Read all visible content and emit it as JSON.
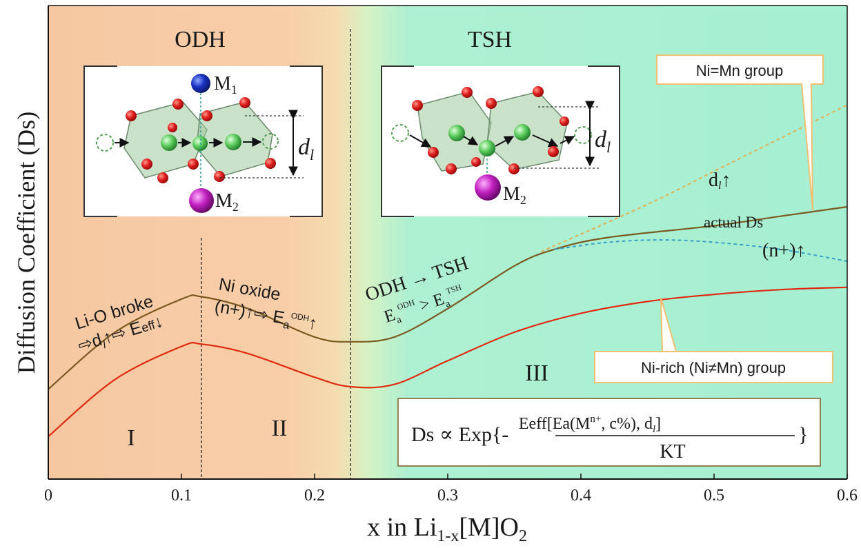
{
  "chart_data": {
    "type": "line",
    "xlabel": "x in Li1-x[M]O2",
    "xlabel_parts": {
      "a": "x in Li",
      "sub": "1-x",
      "b": "[M]O",
      "sub2": "2"
    },
    "ylabel": "Diffusion Coefficient (Ds)",
    "xlim": [
      0,
      0.6
    ],
    "x_ticks": [
      "0",
      "0.1",
      "0.2",
      "0.3",
      "0.4",
      "0.5",
      "0.6"
    ],
    "x_tick_values": [
      0,
      0.1,
      0.2,
      0.3,
      0.4,
      0.5,
      0.6
    ],
    "ylim": [
      0,
      1
    ],
    "grid": false,
    "regions": [
      {
        "label": "I",
        "from": 0,
        "to": 0.115
      },
      {
        "label": "II",
        "from": 0.115,
        "to": 0.227
      },
      {
        "label": "III",
        "from": 0.227,
        "to": 0.6
      }
    ],
    "phase_labels": [
      "ODH",
      "TSH"
    ],
    "boundaries_x": [
      0.115,
      0.227
    ],
    "series": [
      {
        "name": "Ni=Mn group",
        "color": "#7a5a20",
        "x": [
          0,
          0.05,
          0.1,
          0.115,
          0.15,
          0.2,
          0.227,
          0.26,
          0.3,
          0.35,
          0.38,
          0.42,
          0.5,
          0.55,
          0.6
        ],
        "y": [
          0.19,
          0.31,
          0.38,
          0.385,
          0.36,
          0.3,
          0.29,
          0.3,
          0.36,
          0.45,
          0.485,
          0.51,
          0.535,
          0.555,
          0.575
        ]
      },
      {
        "name": "Ni-rich (Ni≠Mn) group",
        "color": "#e02a10",
        "x": [
          0,
          0.05,
          0.1,
          0.115,
          0.15,
          0.2,
          0.227,
          0.26,
          0.3,
          0.35,
          0.4,
          0.45,
          0.5,
          0.55,
          0.6
        ],
        "y": [
          0.09,
          0.21,
          0.28,
          0.285,
          0.265,
          0.215,
          0.195,
          0.2,
          0.25,
          0.31,
          0.35,
          0.375,
          0.39,
          0.4,
          0.405
        ]
      },
      {
        "name": "dl↑",
        "color": "#e0b050",
        "dashed": true,
        "x": [
          0.37,
          0.45,
          0.5,
          0.55,
          0.6
        ],
        "y": [
          0.48,
          0.58,
          0.65,
          0.72,
          0.79
        ]
      },
      {
        "name": "(n+)↑",
        "color": "#3aa0c8",
        "dashed": true,
        "x": [
          0.38,
          0.42,
          0.46,
          0.5,
          0.55,
          0.6
        ],
        "y": [
          0.485,
          0.5,
          0.505,
          0.5,
          0.485,
          0.46
        ]
      }
    ],
    "annotations": {
      "li_o_1": "Li-O broke",
      "li_o_2": "⇨d",
      "li_o_2_sub": "l",
      "li_o_2b": "↑⇨ E",
      "li_o_2b_sub": "eff",
      "li_o_2c": "↓",
      "ni_oxide_1": "Ni oxide",
      "ni_oxide_2": "(n+)↑⇨ E",
      "ni_oxide_2_sub": "a",
      "ni_oxide_2_sup": "ODH",
      "ni_oxide_2c": "↑",
      "odh_tsh": "ODH → TSH",
      "ea_rel_a": "E",
      "ea_rel_sub1": "a",
      "ea_rel_sup1": "ODH",
      "ea_rel_mid": " > E",
      "ea_rel_sub2": "a",
      "ea_rel_sup2": "TSH",
      "dl_up": "d",
      "dl_up_sub": "l",
      "dl_up_arrow": "↑",
      "actual_ds": "actual Ds",
      "n_plus": "(n+)↑",
      "callout_nimn": "Ni=Mn group",
      "callout_nirich": "Ni-rich (Ni≠Mn) group"
    },
    "formula": {
      "lhs": "Ds ∝ Exp{-",
      "num_a": "Eeff[Ea(M",
      "num_sup": "n+",
      "num_b": ", c%), d",
      "num_sub": "l",
      "num_c": "]",
      "den": "KT",
      "rhs": "}"
    },
    "insets": [
      {
        "top_label": "M",
        "top_sub": "1",
        "bottom_label": "M",
        "bottom_sub": "2",
        "dim_label": "d",
        "dim_sub": "l"
      },
      {
        "bottom_label": "M",
        "bottom_sub": "2",
        "dim_label": "d",
        "dim_sub": "l"
      }
    ]
  },
  "colors": {
    "odh_bg": "#f6c9a4",
    "tsh_bg": "#a9efd0",
    "ni_mn_line": "#7a5a20",
    "ni_rich_line": "#e02a10",
    "dl_dashed": "#e0b050",
    "n_dashed": "#3aa0c8",
    "callout_border": "#f0c070",
    "atom_O": "#e02020",
    "atom_Li": "#50c850",
    "atom_M1": "#1830b0",
    "atom_M2": "#b020b0"
  }
}
